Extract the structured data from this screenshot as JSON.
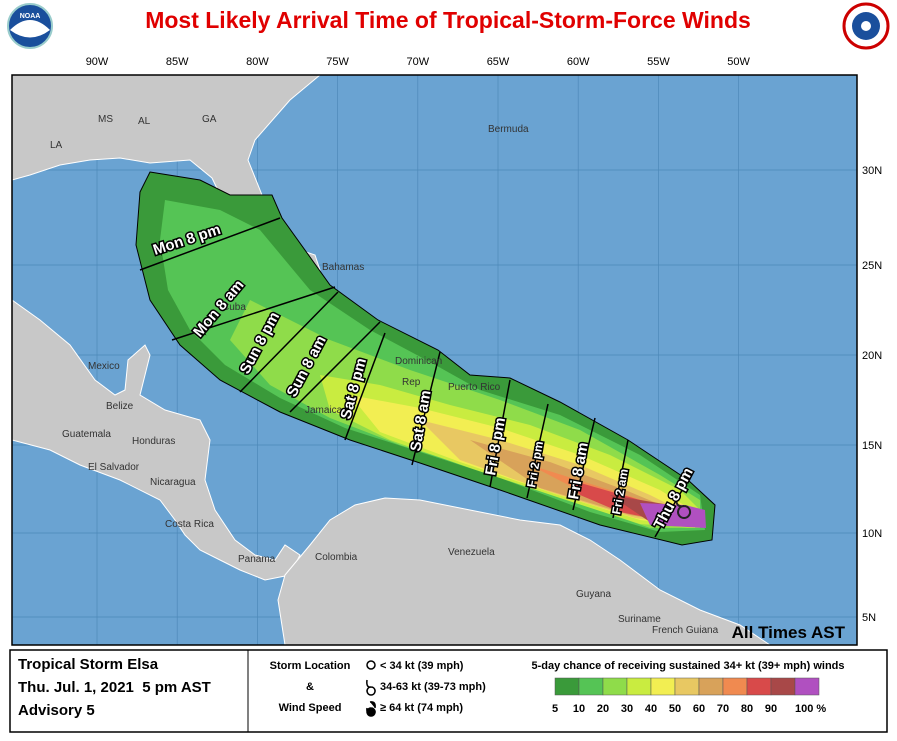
{
  "title": "Most Likely Arrival Time of Tropical-Storm-Force Winds",
  "logo_text": "NOAA",
  "longitude_labels": [
    "90W",
    "85W",
    "80W",
    "75W",
    "70W",
    "65W",
    "60W",
    "55W",
    "50W"
  ],
  "latitude_labels": [
    "30N",
    "25N",
    "20N",
    "15N",
    "10N",
    "5N"
  ],
  "places": [
    "MS",
    "AL",
    "GA",
    "LA",
    "Bermuda",
    "Bahamas",
    "Cuba",
    "Mexico",
    "Belize",
    "Guatemala",
    "Honduras",
    "El Salvador",
    "Nicaragua",
    "Costa Rica",
    "Panama",
    "Colombia",
    "Venezuela",
    "Guyana",
    "Suriname",
    "French Guiana",
    "Jamaica",
    "Dominican",
    "Rep",
    "Puerto Rico"
  ],
  "arrival_times": [
    "Mon 8 pm",
    "Mon 8 am",
    "Sun 8 pm",
    "Sun 8 am",
    "Sat 8 pm",
    "Sat 8 am",
    "Fri 8 pm",
    "Fri 2 pm",
    "Fri 8 am",
    "Fri 2 am",
    "Thu 8 pm"
  ],
  "times_note": "All Times AST",
  "legend": {
    "storm_name": "Tropical Storm Elsa",
    "date": "Thu. Jul. 1, 2021  5 pm AST",
    "advisory": "Advisory 5",
    "storm_location": "Storm Location",
    "amp": "&",
    "wind_speed": "Wind Speed",
    "symbols": [
      "< 34 kt (39 mph)",
      "34-63 kt (39-73 mph)",
      "≥ 64 kt (74 mph)"
    ],
    "scale_title": "5-day chance of receiving sustained 34+ kt (39+ mph) winds",
    "scale_labels": [
      "5",
      "10",
      "20",
      "30",
      "40",
      "50",
      "60",
      "70",
      "80",
      "90",
      "100 %"
    ],
    "scale_colors": [
      "#3a9a3a",
      "#55c455",
      "#8fdc4a",
      "#c9ec40",
      "#f2ee52",
      "#e8c862",
      "#d8a25a",
      "#f08a50",
      "#d84a4a",
      "#a84848",
      "#b050c0"
    ]
  }
}
